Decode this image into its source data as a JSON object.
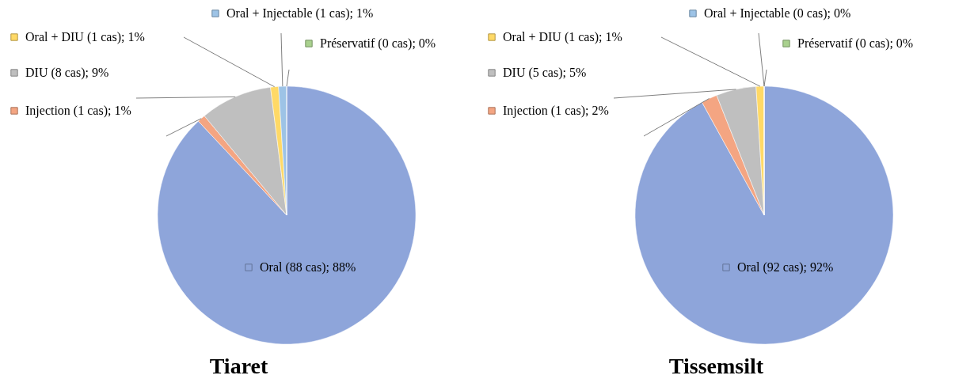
{
  "chart_data": [
    {
      "type": "pie",
      "title": "Tiaret",
      "legend": "top left",
      "categories": [
        "Oral (88 cas); 88%",
        "Injection (1 cas); 1%",
        "DIU (8 cas); 9%",
        "Oral + DIU (1 cas); 1%",
        "Oral + Injectable (1 cas); 1%",
        "Préservatif (0 cas); 0%"
      ],
      "values": [
        88,
        1,
        9,
        1,
        1,
        0
      ],
      "colors": [
        "#8ea5da",
        "#f4a582",
        "#bfbfbf",
        "#ffd966",
        "#9dc3e6",
        "#a9d18e"
      ]
    },
    {
      "type": "pie",
      "title": "Tissemsilt",
      "legend": "top left",
      "categories": [
        "Oral (92 cas); 92%",
        "Injection (1 cas); 2%",
        "DIU (5 cas); 5%",
        "Oral + DIU (1 cas); 1%",
        "Oral + Injectable (0 cas); 0%",
        "Préservatif (0 cas); 0%"
      ],
      "values": [
        92,
        2,
        5,
        1,
        0,
        0
      ],
      "colors": [
        "#8ea5da",
        "#f4a582",
        "#bfbfbf",
        "#ffd966",
        "#9dc3e6",
        "#a9d18e"
      ]
    }
  ]
}
